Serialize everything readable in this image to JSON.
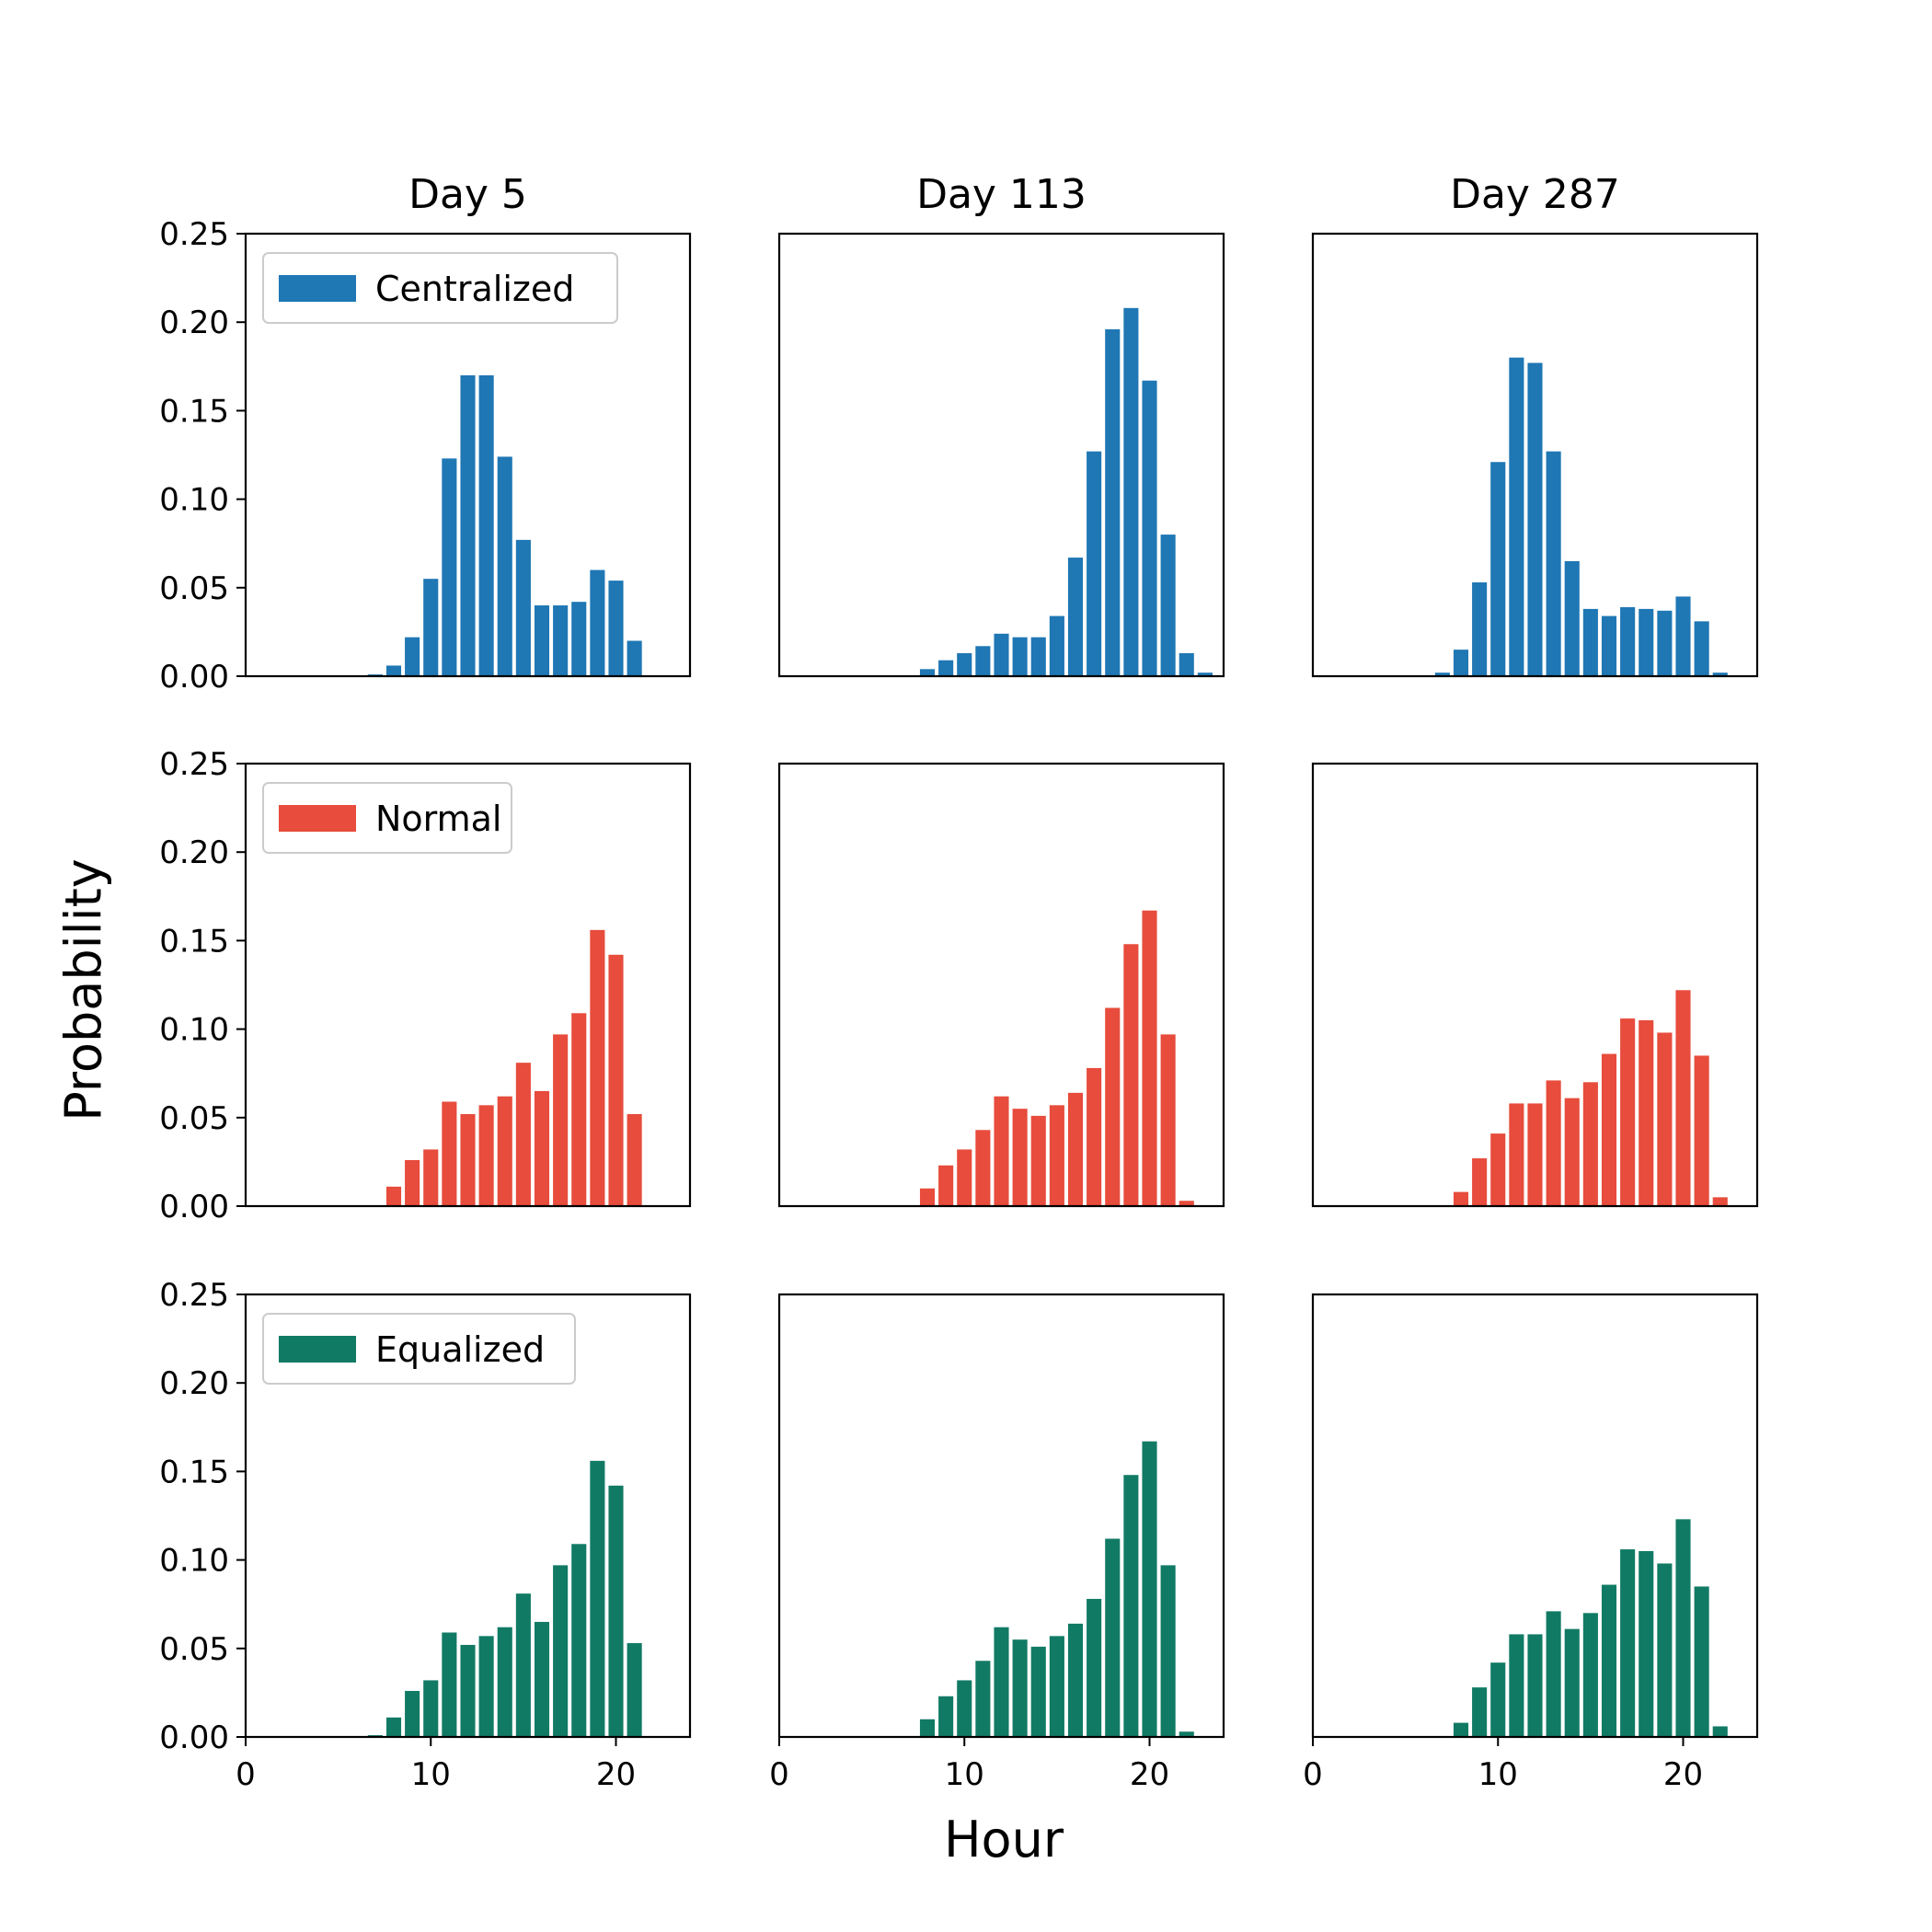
{
  "chart_data": {
    "type": "bar",
    "ylabel": "Probability",
    "xlabel": "Hour",
    "xlim": [
      0,
      24
    ],
    "ylim": [
      0,
      0.25
    ],
    "xticks": [
      0,
      10,
      20
    ],
    "xtick_labels": [
      "0",
      "10",
      "20"
    ],
    "yticks": [
      0,
      0.05,
      0.1,
      0.15,
      0.2,
      0.25
    ],
    "ytick_labels": [
      "0.00",
      "0.05",
      "0.10",
      "0.15",
      "0.20",
      "0.25"
    ],
    "column_titles": [
      "Day 5",
      "Day 113",
      "Day 287"
    ],
    "x": [
      0,
      1,
      2,
      3,
      4,
      5,
      6,
      7,
      8,
      9,
      10,
      11,
      12,
      13,
      14,
      15,
      16,
      17,
      18,
      19,
      20,
      21,
      22,
      23
    ],
    "rows": [
      {
        "series_name": "Centralized",
        "color": "#1f77b4",
        "panels": [
          {
            "title": "Day 5",
            "values": [
              0,
              0,
              0,
              0,
              0,
              0,
              0,
              0.001,
              0.006,
              0.022,
              0.055,
              0.123,
              0.17,
              0.17,
              0.124,
              0.077,
              0.04,
              0.04,
              0.042,
              0.06,
              0.054,
              0.02,
              0,
              0
            ]
          },
          {
            "title": "Day 113",
            "values": [
              0,
              0,
              0,
              0,
              0,
              0,
              0,
              0,
              0.004,
              0.009,
              0.013,
              0.017,
              0.024,
              0.022,
              0.022,
              0.034,
              0.067,
              0.127,
              0.196,
              0.208,
              0.167,
              0.08,
              0.013,
              0.002
            ]
          },
          {
            "title": "Day 287",
            "values": [
              0,
              0,
              0,
              0,
              0,
              0,
              0,
              0.002,
              0.015,
              0.053,
              0.121,
              0.18,
              0.177,
              0.127,
              0.065,
              0.038,
              0.034,
              0.039,
              0.038,
              0.037,
              0.045,
              0.031,
              0.002,
              0
            ]
          }
        ]
      },
      {
        "series_name": "Normal",
        "color": "#e74c3c",
        "panels": [
          {
            "title": "Day 5",
            "values": [
              0,
              0,
              0,
              0,
              0,
              0,
              0,
              0,
              0.011,
              0.026,
              0.032,
              0.059,
              0.052,
              0.057,
              0.062,
              0.081,
              0.065,
              0.097,
              0.109,
              0.156,
              0.142,
              0.052,
              0,
              0
            ]
          },
          {
            "title": "Day 113",
            "values": [
              0,
              0,
              0,
              0,
              0,
              0,
              0,
              0,
              0.01,
              0.023,
              0.032,
              0.043,
              0.062,
              0.055,
              0.051,
              0.057,
              0.064,
              0.078,
              0.112,
              0.148,
              0.167,
              0.097,
              0.003,
              0
            ]
          },
          {
            "title": "Day 287",
            "values": [
              0,
              0,
              0,
              0,
              0,
              0,
              0,
              0,
              0.008,
              0.027,
              0.041,
              0.058,
              0.058,
              0.071,
              0.061,
              0.07,
              0.086,
              0.106,
              0.105,
              0.098,
              0.122,
              0.085,
              0.005,
              0
            ]
          }
        ]
      },
      {
        "series_name": "Equalized",
        "color": "#117a65",
        "panels": [
          {
            "title": "Day 5",
            "values": [
              0,
              0,
              0,
              0,
              0,
              0,
              0,
              0.001,
              0.011,
              0.026,
              0.032,
              0.059,
              0.052,
              0.057,
              0.062,
              0.081,
              0.065,
              0.097,
              0.109,
              0.156,
              0.142,
              0.053,
              0,
              0
            ]
          },
          {
            "title": "Day 113",
            "values": [
              0,
              0,
              0,
              0,
              0,
              0,
              0,
              0,
              0.01,
              0.023,
              0.032,
              0.043,
              0.062,
              0.055,
              0.051,
              0.057,
              0.064,
              0.078,
              0.112,
              0.148,
              0.167,
              0.097,
              0.003,
              0
            ]
          },
          {
            "title": "Day 287",
            "values": [
              0,
              0,
              0,
              0,
              0,
              0,
              0,
              0,
              0.008,
              0.028,
              0.042,
              0.058,
              0.058,
              0.071,
              0.061,
              0.07,
              0.086,
              0.106,
              0.105,
              0.098,
              0.123,
              0.085,
              0.006,
              0
            ]
          }
        ]
      }
    ]
  }
}
